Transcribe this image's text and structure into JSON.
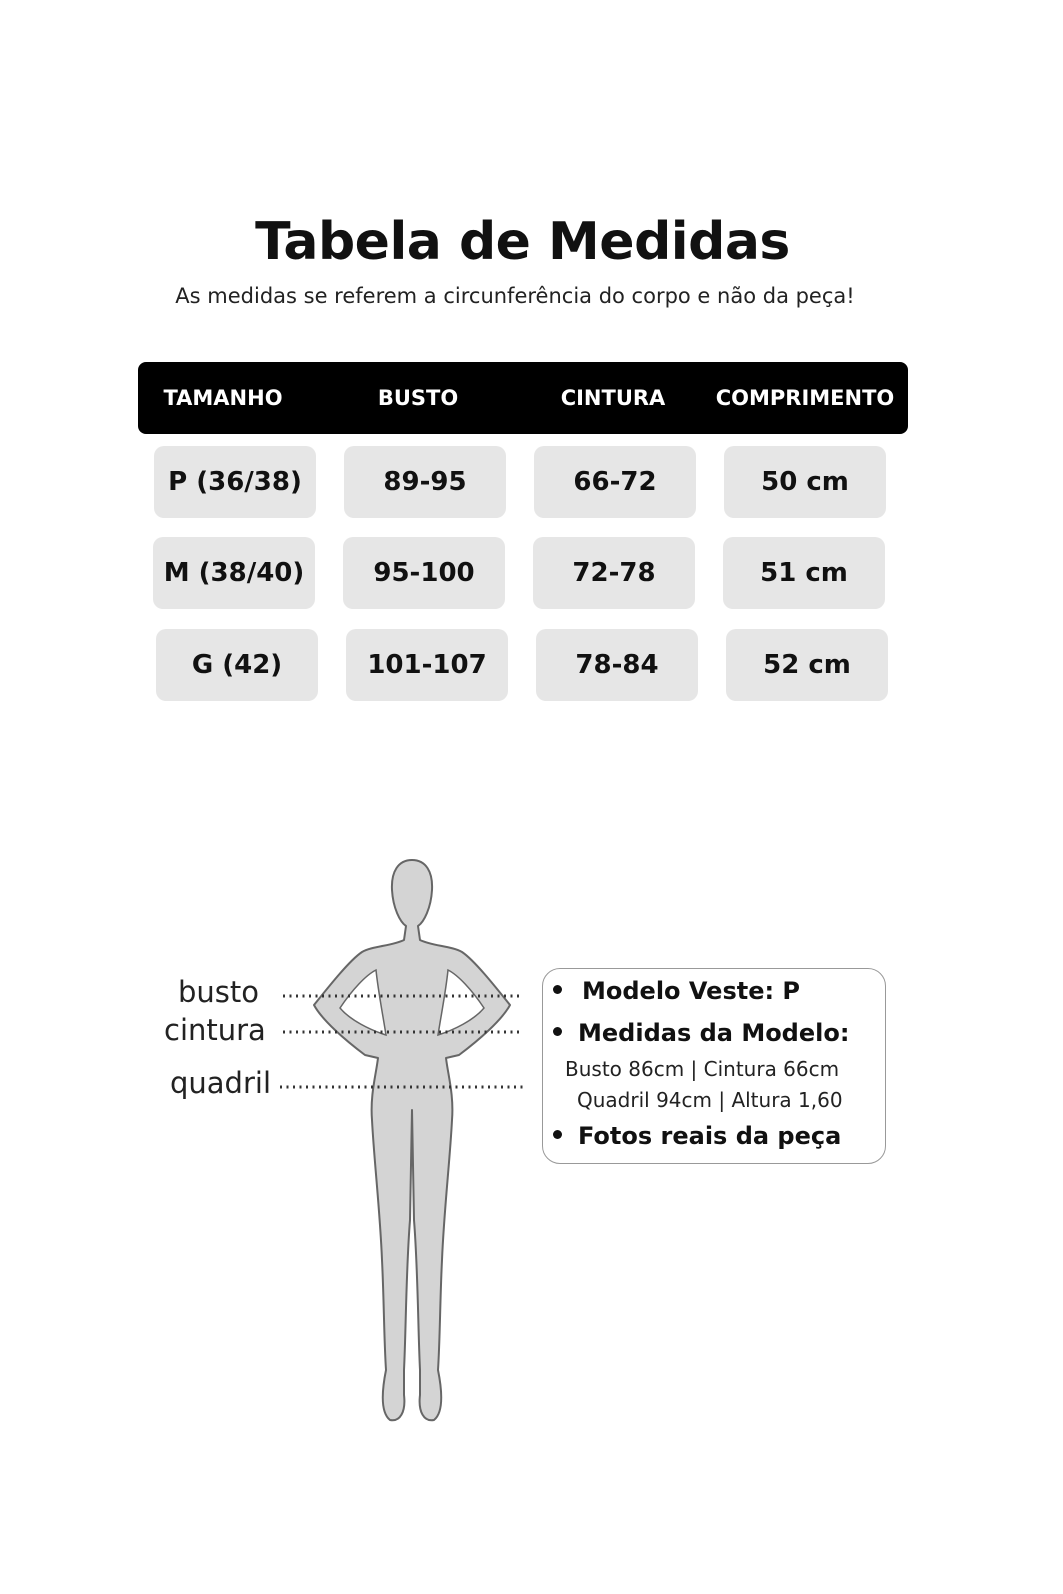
{
  "title": "Tabela de Medidas",
  "subtitle": "As medidas se referem a circunferência do corpo e não da peça!",
  "table": {
    "headers": [
      "TAMANHO",
      "BUSTO",
      "CINTURA",
      "COMPRIMENTO"
    ],
    "rows": [
      [
        "P (36/38)",
        "89-95",
        "66-72",
        "50 cm"
      ],
      [
        "M (38/40)",
        "95-100",
        "72-78",
        "51 cm"
      ],
      [
        "G (42)",
        "101-107",
        "78-84",
        "52 cm"
      ]
    ]
  },
  "figure": {
    "labels": {
      "bust": "busto",
      "waist": "cintura",
      "hip": "quadril"
    }
  },
  "info": {
    "model_wears": "Modelo Veste:  P",
    "model_measures_title": "Medidas da Modelo:",
    "line1": "Busto 86cm | Cintura 66cm",
    "line2": "Quadril 94cm | Altura 1,60",
    "real_photos": "Fotos reais da peça"
  },
  "colors": {
    "header_bg": "#000000",
    "cell_bg": "#e6e6e6",
    "figure_fill": "#d4d4d4"
  }
}
